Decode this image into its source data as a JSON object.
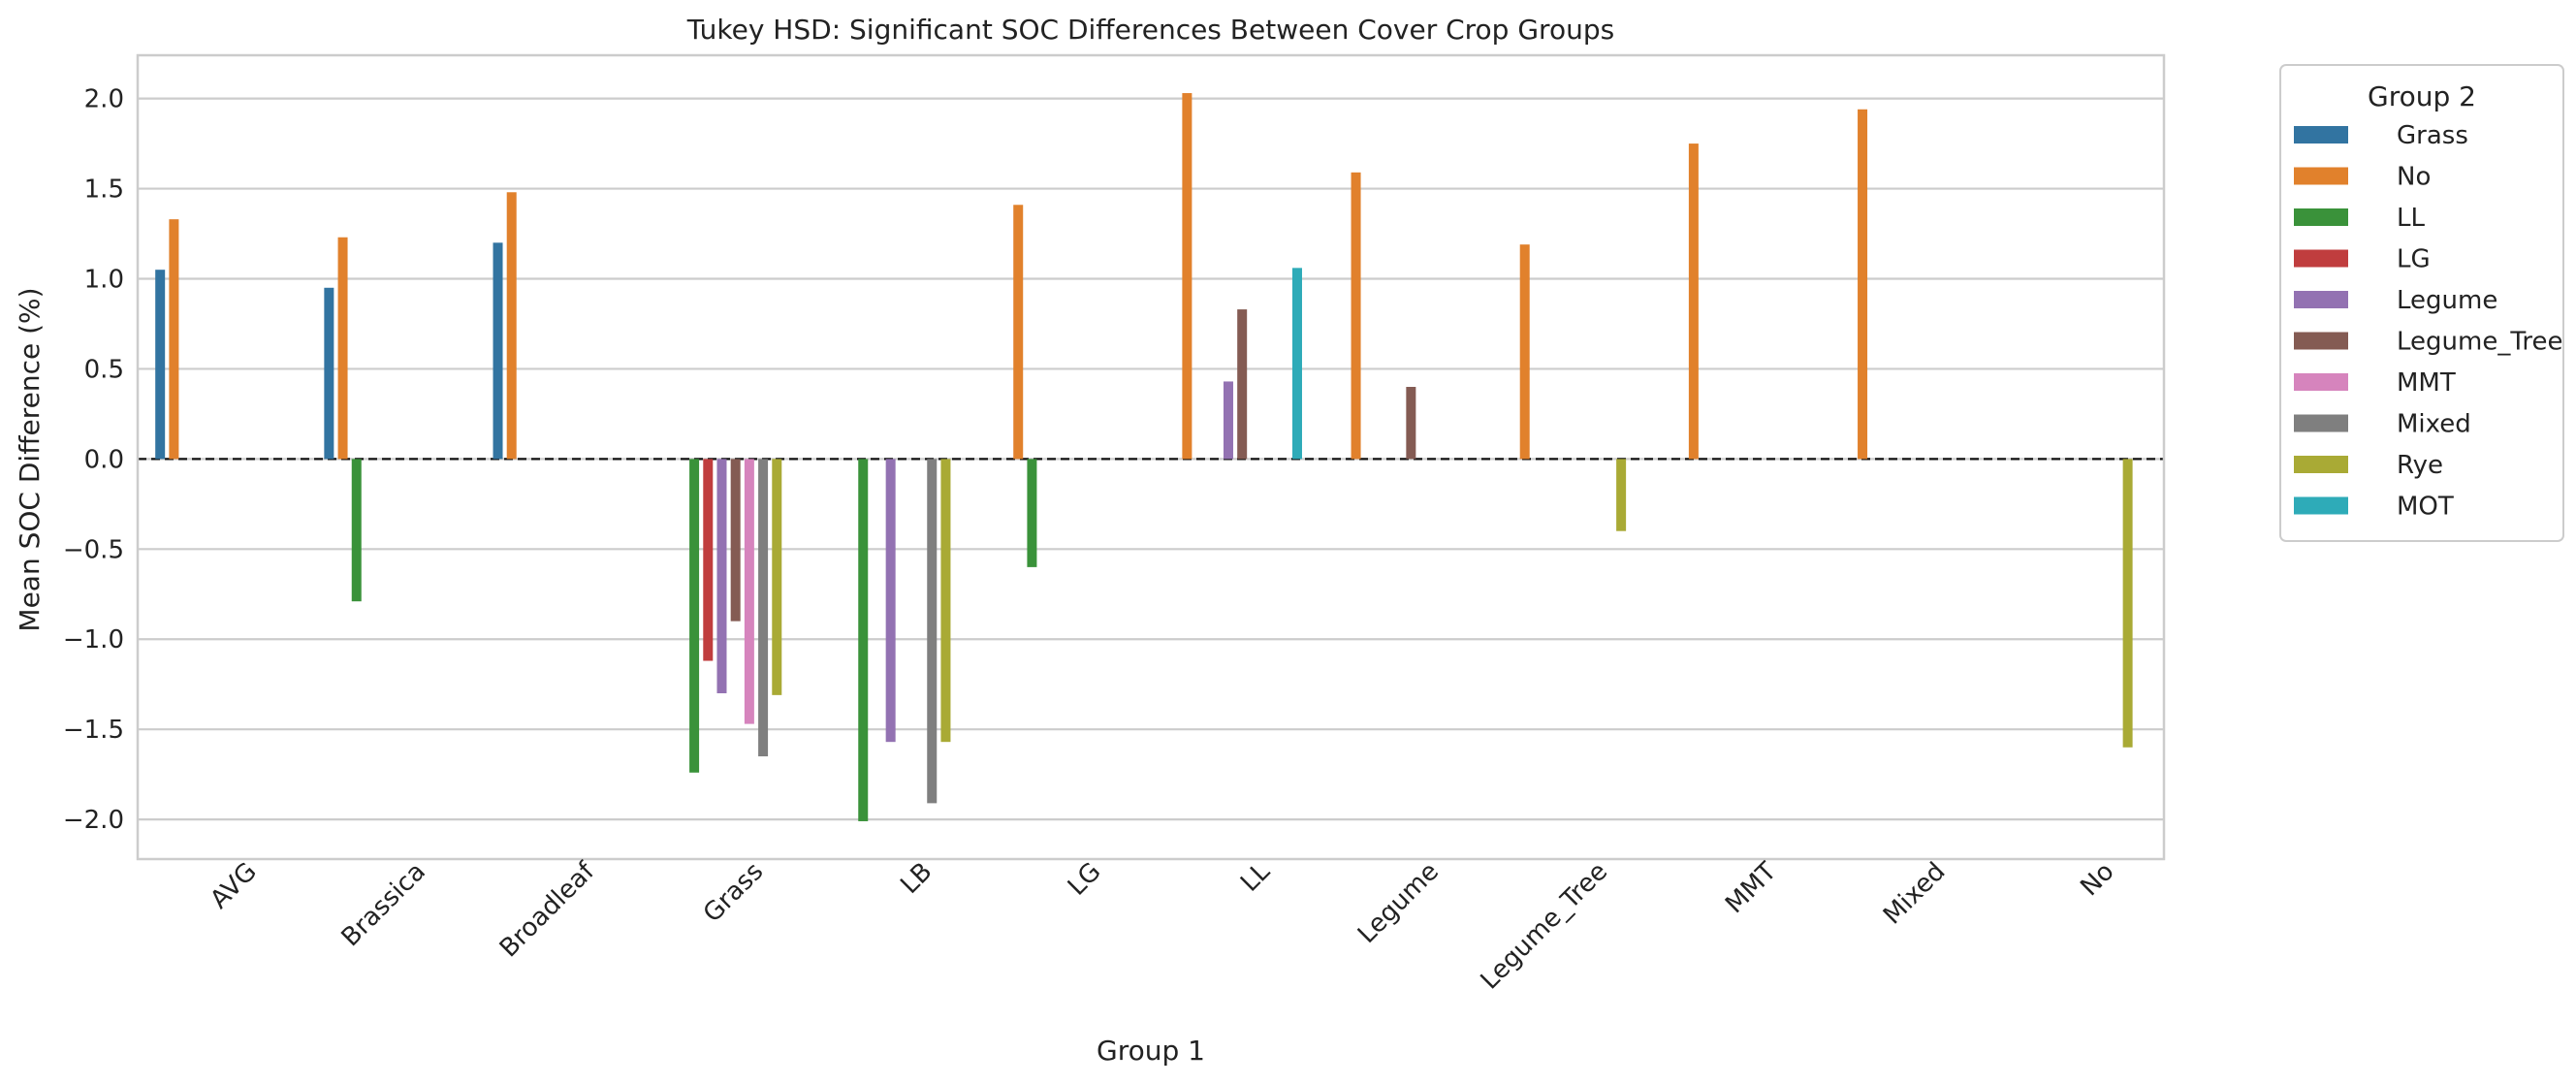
{
  "chart_data": {
    "type": "bar",
    "title": "Tukey HSD: Significant SOC Differences Between Cover Crop Groups",
    "xlabel": "Group 1",
    "ylabel": "Mean SOC Difference (%)",
    "ylim": [
      -2.22,
      2.24
    ],
    "yticks": [
      -2.0,
      -1.5,
      -1.0,
      -0.5,
      0.0,
      0.5,
      1.0,
      1.5,
      2.0
    ],
    "ytick_labels": [
      "−2.0",
      "−1.5",
      "−1.0",
      "−0.5",
      "0.0",
      "0.5",
      "1.0",
      "1.5",
      "2.0"
    ],
    "grid": true,
    "legend_position": "outside-top-right",
    "legend_title": "Group 2",
    "reference_line": 0,
    "categories": [
      "AVG",
      "Brassica",
      "Broadleaf",
      "Grass",
      "LB",
      "LG",
      "LL",
      "Legume",
      "Legume_Tree",
      "MMT",
      "Mixed",
      "No"
    ],
    "series": [
      {
        "name": "Grass",
        "color": "#3274a1",
        "values": [
          1.05,
          0.95,
          1.2,
          null,
          null,
          null,
          null,
          null,
          null,
          null,
          null,
          null
        ]
      },
      {
        "name": "No",
        "color": "#e1812c",
        "values": [
          1.33,
          1.23,
          1.48,
          null,
          null,
          1.41,
          2.03,
          1.59,
          1.19,
          1.75,
          1.94,
          null
        ]
      },
      {
        "name": "LL",
        "color": "#3a923a",
        "values": [
          null,
          -0.79,
          null,
          -1.74,
          -2.01,
          -0.6,
          null,
          null,
          null,
          null,
          null,
          null
        ]
      },
      {
        "name": "LG",
        "color": "#c03d3e",
        "values": [
          null,
          null,
          null,
          -1.12,
          null,
          null,
          null,
          null,
          null,
          null,
          null,
          null
        ]
      },
      {
        "name": "Legume",
        "color": "#9372b2",
        "values": [
          null,
          null,
          null,
          -1.3,
          -1.57,
          null,
          0.43,
          null,
          null,
          null,
          null,
          null
        ]
      },
      {
        "name": "Legume_Tree",
        "color": "#845b53",
        "values": [
          null,
          null,
          null,
          -0.9,
          null,
          null,
          0.83,
          0.4,
          null,
          null,
          null,
          null
        ]
      },
      {
        "name": "MMT",
        "color": "#d684bd",
        "values": [
          null,
          null,
          null,
          -1.47,
          null,
          null,
          null,
          null,
          null,
          null,
          null,
          null
        ]
      },
      {
        "name": "Mixed",
        "color": "#7f7f7f",
        "values": [
          null,
          null,
          null,
          -1.65,
          -1.91,
          null,
          null,
          null,
          null,
          null,
          null,
          null
        ]
      },
      {
        "name": "Rye",
        "color": "#a9aa35",
        "values": [
          null,
          null,
          null,
          -1.31,
          -1.57,
          null,
          null,
          null,
          -0.4,
          null,
          null,
          -1.6
        ]
      },
      {
        "name": "MOT",
        "color": "#2eabb8",
        "values": [
          null,
          null,
          null,
          null,
          null,
          null,
          1.06,
          null,
          null,
          null,
          null,
          null
        ]
      }
    ]
  }
}
